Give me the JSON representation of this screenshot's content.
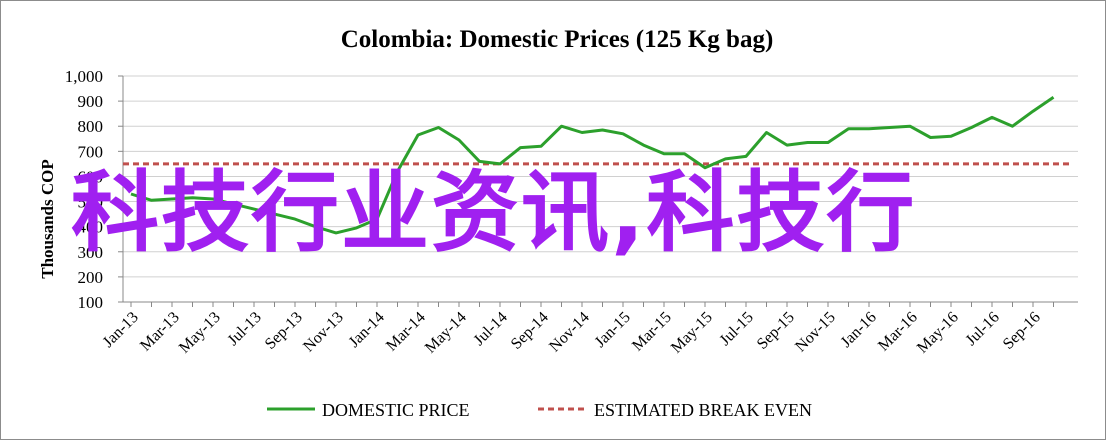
{
  "chart_data": {
    "type": "line",
    "title": "Colombia:  Domestic Prices (125 Kg bag)",
    "ylabel": "Thousands COP",
    "ylim": [
      100,
      1000
    ],
    "yticks": [
      100,
      200,
      300,
      400,
      500,
      600,
      700,
      800,
      900,
      1000
    ],
    "ytick_labels": [
      "100",
      "200",
      "300",
      "400",
      "500",
      "600",
      "700",
      "800",
      "900",
      "1,000"
    ],
    "xtick_labels": [
      "Jan-13",
      "Mar-13",
      "May-13",
      "Jul-13",
      "Sep-13",
      "Nov-13",
      "Jan-14",
      "Mar-14",
      "May-14",
      "Jul-14",
      "Sep-14",
      "Nov-14",
      "Jan-15",
      "Mar-15",
      "May-15",
      "Jul-15",
      "Sep-15",
      "Nov-15",
      "Jan-16",
      "Mar-16",
      "May-16",
      "Jul-16",
      "Sep-16"
    ],
    "grid": true,
    "legend_position": "bottom",
    "series": [
      {
        "name": "DOMESTIC PRICE",
        "color": "#2ca02c",
        "style": "solid",
        "x_months": [
          "Jan-13",
          "Feb-13",
          "Mar-13",
          "Apr-13",
          "May-13",
          "Jun-13",
          "Jul-13",
          "Aug-13",
          "Sep-13",
          "Oct-13",
          "Nov-13",
          "Dec-13",
          "Jan-14",
          "Feb-14",
          "Mar-14",
          "Apr-14",
          "May-14",
          "Jun-14",
          "Jul-14",
          "Aug-14",
          "Sep-14",
          "Oct-14",
          "Nov-14",
          "Dec-14",
          "Jan-15",
          "Feb-15",
          "Mar-15",
          "Apr-15",
          "May-15",
          "Jun-15",
          "Jul-15",
          "Aug-15",
          "Sep-15",
          "Oct-15",
          "Nov-15",
          "Dec-15",
          "Jan-16",
          "Feb-16",
          "Mar-16",
          "Apr-16",
          "May-16",
          "Jun-16",
          "Jul-16",
          "Aug-16",
          "Sep-16",
          "Oct-16"
        ],
        "values": [
          530,
          505,
          510,
          515,
          510,
          490,
          470,
          450,
          430,
          400,
          375,
          395,
          430,
          620,
          765,
          795,
          745,
          660,
          650,
          715,
          720,
          800,
          775,
          785,
          770,
          725,
          690,
          690,
          635,
          670,
          680,
          775,
          725,
          735,
          735,
          790,
          790,
          795,
          800,
          755,
          760,
          795,
          835,
          800,
          860,
          915
        ]
      },
      {
        "name": "ESTIMATED BREAK EVEN",
        "color": "#c0504d",
        "style": "dashed",
        "values": [
          650
        ]
      }
    ]
  },
  "watermark_text": "科技行业资讯,科技行"
}
